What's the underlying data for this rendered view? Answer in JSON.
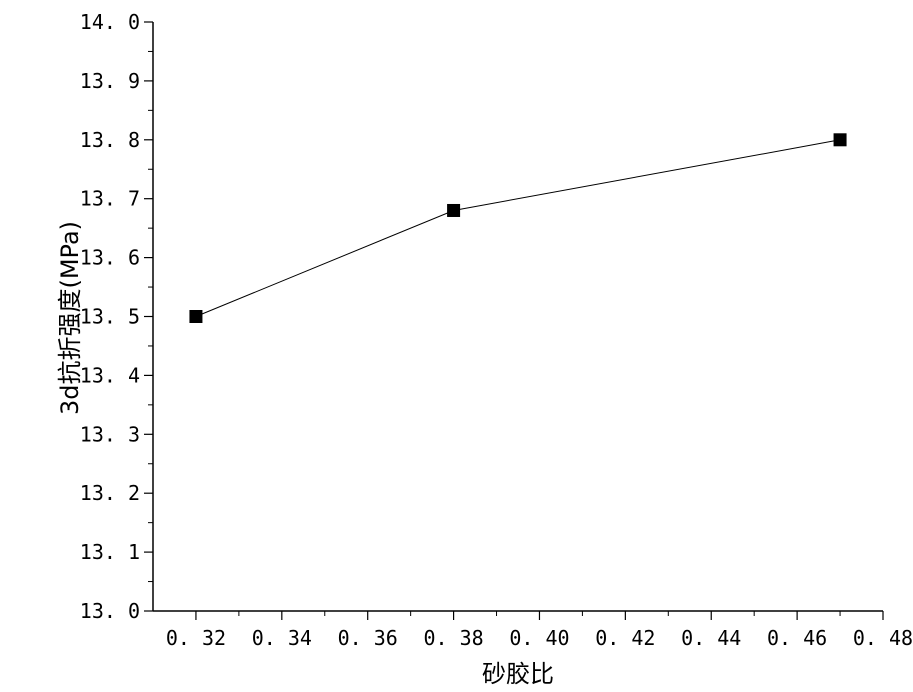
{
  "chart_data": {
    "type": "line",
    "xlabel": "砂胶比",
    "ylabel": "3d抗折强度(MPa)",
    "xlim": [
      0.31,
      0.48
    ],
    "ylim": [
      13.0,
      14.0
    ],
    "xticks": [
      0.32,
      0.34,
      0.36,
      0.38,
      0.4,
      0.42,
      0.44,
      0.46,
      0.48
    ],
    "xtick_labels": [
      "0. 32",
      "0. 34",
      "0. 36",
      "0. 38",
      "0. 40",
      "0. 42",
      "0. 44",
      "0. 46",
      "0. 48"
    ],
    "yticks": [
      13.0,
      13.1,
      13.2,
      13.3,
      13.4,
      13.5,
      13.6,
      13.7,
      13.8,
      13.9,
      14.0
    ],
    "ytick_labels": [
      "13. 0",
      "13. 1",
      "13. 2",
      "13. 3",
      "13. 4",
      "13. 5",
      "13. 6",
      "13. 7",
      "13. 8",
      "13. 9",
      "14. 0"
    ],
    "grid": false,
    "legend": "none",
    "marker": "square",
    "color": "#000000",
    "series": [
      {
        "x": [
          0.32,
          0.38,
          0.47
        ],
        "values": [
          13.5,
          13.68,
          13.8
        ]
      }
    ]
  }
}
